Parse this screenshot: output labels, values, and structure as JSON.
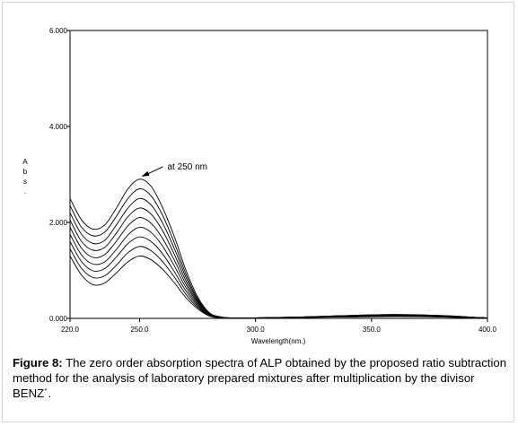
{
  "chart_data": {
    "type": "line",
    "xlabel": "Wavelength(nm.)",
    "ylabel_chars": [
      "A",
      "b",
      "s",
      "."
    ],
    "xlim": [
      220,
      400
    ],
    "ylim": [
      0,
      6
    ],
    "x_ticks": [
      "220.0",
      "250.0",
      "300.0",
      "350.0",
      "400.0"
    ],
    "x_tick_values": [
      220,
      250,
      300,
      350,
      400
    ],
    "y_ticks": [
      "0.000",
      "2.000",
      "4.000",
      "6.000"
    ],
    "y_tick_values": [
      0,
      2,
      4,
      6
    ],
    "annotation": {
      "text": "at 250 nm",
      "x": 250,
      "y": 2.9
    },
    "x": [
      220,
      225,
      230,
      235,
      240,
      245,
      250,
      255,
      260,
      265,
      270,
      275,
      280,
      285,
      290,
      300,
      320,
      340,
      360,
      380,
      395,
      400
    ],
    "series": [
      {
        "values": [
          2.5,
          2.05,
          1.86,
          1.95,
          2.3,
          2.7,
          2.9,
          2.75,
          2.3,
          1.7,
          1.0,
          0.45,
          0.12,
          0.03,
          0.01,
          0.01,
          0.03,
          0.06,
          0.08,
          0.06,
          0.02,
          0.01
        ]
      },
      {
        "values": [
          2.35,
          1.9,
          1.72,
          1.8,
          2.13,
          2.5,
          2.7,
          2.55,
          2.14,
          1.57,
          0.92,
          0.41,
          0.11,
          0.03,
          0.01,
          0.01,
          0.03,
          0.06,
          0.08,
          0.06,
          0.02,
          0.01
        ]
      },
      {
        "values": [
          2.2,
          1.75,
          1.56,
          1.63,
          1.95,
          2.3,
          2.5,
          2.36,
          1.98,
          1.45,
          0.85,
          0.38,
          0.1,
          0.03,
          0.01,
          0.01,
          0.03,
          0.05,
          0.07,
          0.05,
          0.02,
          0.01
        ]
      },
      {
        "values": [
          2.05,
          1.6,
          1.42,
          1.48,
          1.78,
          2.12,
          2.3,
          2.17,
          1.82,
          1.33,
          0.78,
          0.35,
          0.09,
          0.02,
          0.01,
          0.01,
          0.03,
          0.05,
          0.07,
          0.05,
          0.02,
          0.01
        ]
      },
      {
        "values": [
          1.9,
          1.46,
          1.27,
          1.33,
          1.61,
          1.93,
          2.1,
          1.98,
          1.66,
          1.21,
          0.71,
          0.32,
          0.08,
          0.02,
          0.01,
          0.01,
          0.02,
          0.05,
          0.06,
          0.05,
          0.02,
          0.01
        ]
      },
      {
        "values": [
          1.75,
          1.32,
          1.13,
          1.18,
          1.44,
          1.74,
          1.9,
          1.79,
          1.5,
          1.09,
          0.64,
          0.29,
          0.07,
          0.02,
          0.01,
          0.01,
          0.02,
          0.04,
          0.06,
          0.04,
          0.02,
          0.01
        ]
      },
      {
        "values": [
          1.6,
          1.18,
          0.99,
          1.04,
          1.28,
          1.56,
          1.7,
          1.6,
          1.34,
          0.97,
          0.57,
          0.26,
          0.06,
          0.02,
          0.01,
          0.01,
          0.02,
          0.04,
          0.05,
          0.04,
          0.02,
          0.01
        ]
      },
      {
        "values": [
          1.45,
          1.04,
          0.85,
          0.89,
          1.11,
          1.37,
          1.5,
          1.41,
          1.18,
          0.86,
          0.5,
          0.23,
          0.06,
          0.02,
          0.01,
          0.01,
          0.02,
          0.03,
          0.05,
          0.03,
          0.01,
          0.01
        ]
      },
      {
        "values": [
          1.3,
          0.9,
          0.7,
          0.74,
          0.95,
          1.18,
          1.3,
          1.22,
          1.02,
          0.74,
          0.43,
          0.2,
          0.05,
          0.01,
          0.01,
          0.01,
          0.02,
          0.03,
          0.04,
          0.03,
          0.01,
          0.01
        ]
      }
    ],
    "line_color": "#000000"
  },
  "caption": {
    "label": "Figure 8:",
    "text": " The zero order absorption spectra of ALP obtained by the proposed ratio subtraction method for the analysis of laboratory prepared mixtures after multiplication by the divisor BENZ´."
  }
}
